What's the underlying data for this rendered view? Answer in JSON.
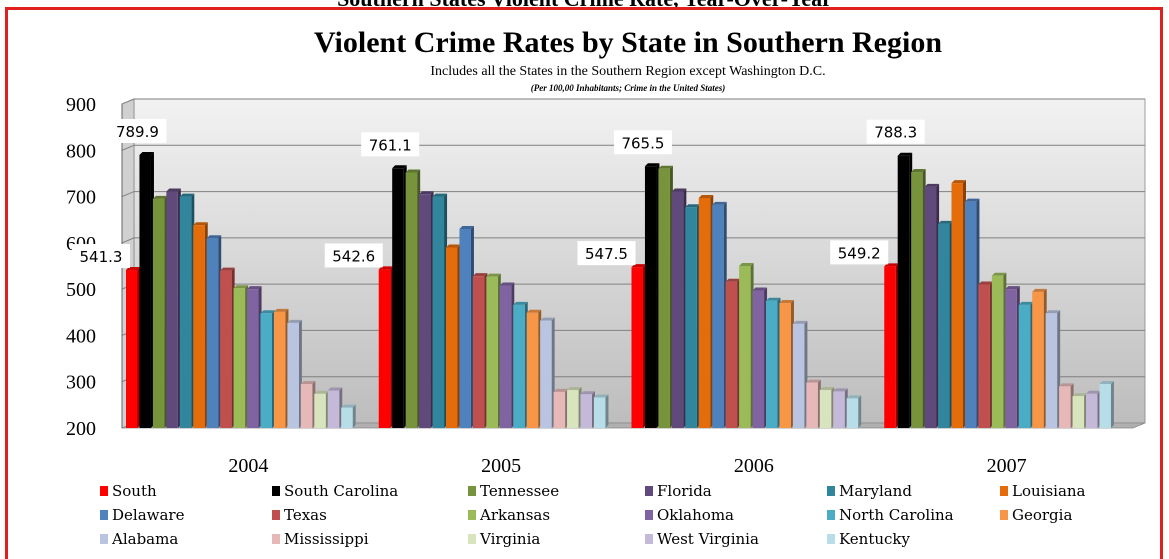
{
  "page_heading": "Southern States Violent Crime Rate, Year-Over-Year",
  "chart_data": {
    "type": "bar",
    "title": "Violent Crime Rates by State in Southern Region",
    "subtitle": "Includes all the States in the Southern Region except Washington D.C.",
    "note": "(Per 100,00 Inhabitants; Crime in the United States)",
    "categories": [
      "2004",
      "2005",
      "2006",
      "2007"
    ],
    "ylim": [
      200,
      900
    ],
    "yticks": [
      "200",
      "300",
      "400",
      "500",
      "600",
      "700",
      "800",
      "900"
    ],
    "grid": true,
    "legend_position": "bottom",
    "series": [
      {
        "name": "South",
        "color": "#ff0000",
        "values": [
          541.3,
          542.6,
          547.5,
          549.2
        ]
      },
      {
        "name": "South Carolina",
        "color": "#000000",
        "values": [
          789.9,
          761.1,
          765.5,
          788.3
        ]
      },
      {
        "name": "Tennessee",
        "color": "#77933c",
        "values": [
          695,
          752,
          760,
          753
        ]
      },
      {
        "name": "Florida",
        "color": "#604a7b",
        "values": [
          711,
          705,
          711,
          721
        ]
      },
      {
        "name": "Maryland",
        "color": "#31859c",
        "values": [
          700,
          700,
          677,
          641
        ]
      },
      {
        "name": "Louisiana",
        "color": "#e46c0a",
        "values": [
          638,
          590,
          697,
          729
        ]
      },
      {
        "name": "Delaware",
        "color": "#4f81bd",
        "values": [
          610,
          630,
          682,
          689
        ]
      },
      {
        "name": "Texas",
        "color": "#c0504d",
        "values": [
          540,
          528,
          516,
          510
        ]
      },
      {
        "name": "Arkansas",
        "color": "#9bbb59",
        "values": [
          502,
          527,
          550,
          529
        ]
      },
      {
        "name": "Oklahoma",
        "color": "#8064a2",
        "values": [
          500,
          508,
          497,
          500
        ]
      },
      {
        "name": "North Carolina",
        "color": "#4bacc6",
        "values": [
          448,
          466,
          475,
          466
        ]
      },
      {
        "name": "Georgia",
        "color": "#f79646",
        "values": [
          451,
          449,
          470,
          494
        ]
      },
      {
        "name": "Alabama",
        "color": "#b9c5e0",
        "values": [
          427,
          432,
          425,
          448
        ]
      },
      {
        "name": "Mississippi",
        "color": "#e6b9b8",
        "values": [
          295,
          278,
          298,
          290
        ]
      },
      {
        "name": "Virginia",
        "color": "#d7e4bd",
        "values": [
          274,
          282,
          282,
          269
        ]
      },
      {
        "name": "West Virginia",
        "color": "#c4b9d8",
        "values": [
          281,
          273,
          279,
          274
        ]
      },
      {
        "name": "Kentucky",
        "color": "#b7dde8",
        "values": [
          244,
          266,
          264,
          295
        ]
      }
    ],
    "data_labels": [
      {
        "series": "South",
        "category": "2004",
        "text": "541.3"
      },
      {
        "series": "South Carolina",
        "category": "2004",
        "text": "789.9"
      },
      {
        "series": "South",
        "category": "2005",
        "text": "542.6"
      },
      {
        "series": "South Carolina",
        "category": "2005",
        "text": "761.1"
      },
      {
        "series": "South",
        "category": "2006",
        "text": "547.5"
      },
      {
        "series": "South Carolina",
        "category": "2006",
        "text": "765.5"
      },
      {
        "series": "South",
        "category": "2007",
        "text": "549.2"
      },
      {
        "series": "South Carolina",
        "category": "2007",
        "text": "788.3"
      }
    ]
  }
}
